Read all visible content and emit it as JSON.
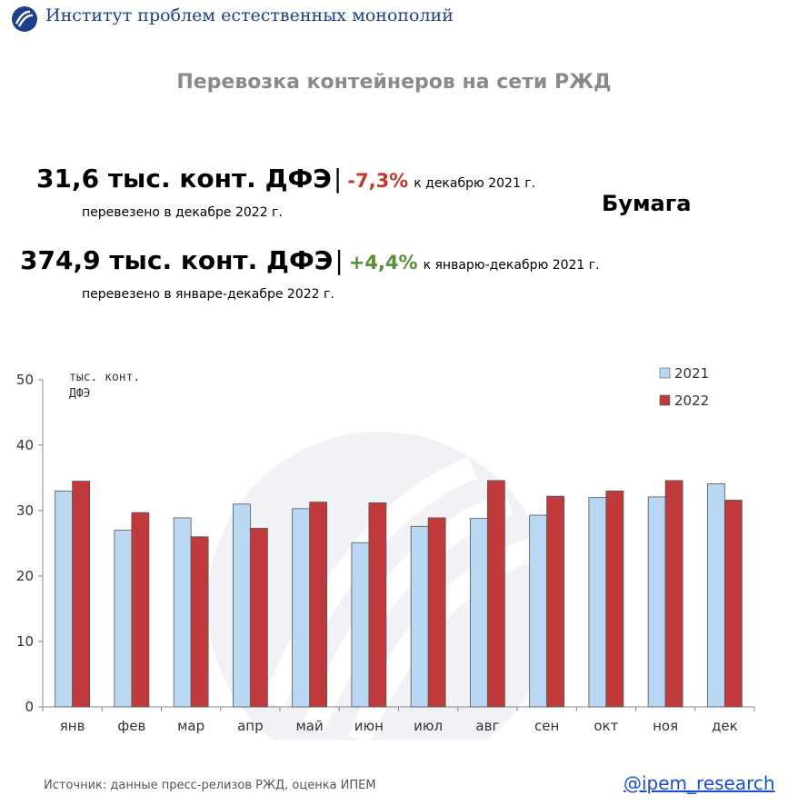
{
  "header": {
    "org_name": "Институт проблем естественных монополий",
    "title": "Перевозка контейнеров на сети РЖД"
  },
  "stats": {
    "month": {
      "value": "31,6 тыс. конт. ДФЭ",
      "separator": "|",
      "change": "-7,3%",
      "change_color": "#c0392b",
      "comparison": "к декабрю 2021 г.",
      "caption": "перевезено в декабре 2022 г."
    },
    "year": {
      "value": "374,9 тыс. конт. ДФЭ",
      "separator": "|",
      "change": "+4,4%",
      "change_color": "#5a8f35",
      "comparison": "к январю-декабрю 2021 г.",
      "caption": "перевезено в январе-декабре 2022 г."
    },
    "cargo_type": "Бумага"
  },
  "chart_data": {
    "type": "bar",
    "unit_label_lines": [
      "тыс. конт.",
      "ДФЭ"
    ],
    "categories": [
      "янв",
      "фев",
      "мар",
      "апр",
      "май",
      "июн",
      "июл",
      "авг",
      "сен",
      "окт",
      "ноя",
      "дек"
    ],
    "series": [
      {
        "name": "2021",
        "color": "#b9d6f2",
        "values": [
          33.0,
          27.0,
          28.9,
          31.0,
          30.3,
          25.1,
          27.6,
          28.8,
          29.3,
          32.0,
          32.1,
          34.1
        ]
      },
      {
        "name": "2022",
        "color": "#c0393b",
        "values": [
          34.5,
          29.7,
          26.0,
          27.3,
          31.3,
          31.2,
          28.9,
          34.6,
          32.2,
          33.0,
          34.6,
          31.6
        ]
      }
    ],
    "ylim": [
      0,
      50
    ],
    "yticks": [
      0,
      10,
      20,
      30,
      40,
      50
    ],
    "legend_position": "top-right",
    "grid": false
  },
  "footer": {
    "source": "Источник: данные пресс-релизов РЖД, оценка ИПЕМ",
    "handle": "@ipem_research"
  }
}
